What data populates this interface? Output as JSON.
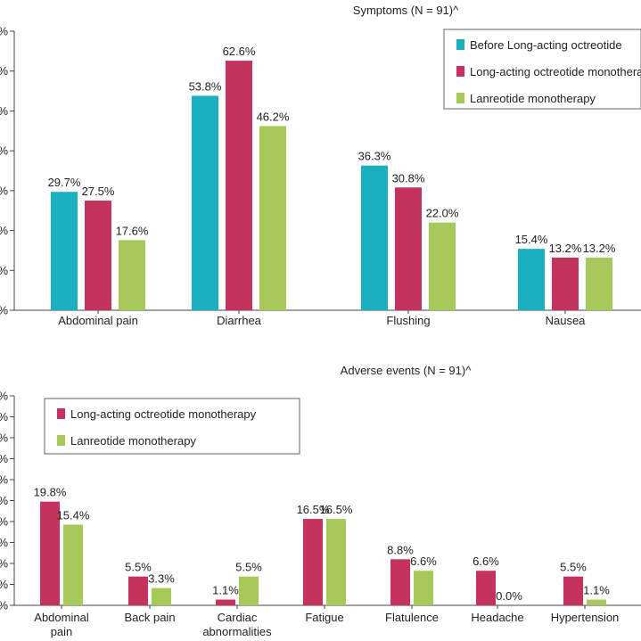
{
  "chart_data": [
    {
      "type": "bar",
      "title": "Symptoms (N = 91)^",
      "categories": [
        "Abdominal pain",
        "Diarrhea",
        "Flushing",
        "Nausea"
      ],
      "ytick_labels": [
        "%",
        "%",
        "%",
        "%",
        "%",
        "%",
        "%",
        "%"
      ],
      "ylim": [
        0,
        70
      ],
      "grid": false,
      "legend_position": "top-right",
      "series": [
        {
          "name": "Before Long-acting octreotide",
          "color": "#1ab0c0",
          "values": [
            29.7,
            53.8,
            36.3,
            15.4
          ],
          "labels": [
            "29.7%",
            "53.8%",
            "36.3%",
            "15.4%"
          ]
        },
        {
          "name": "Long-acting octreotide monotherapy",
          "color": "#c4325e",
          "values": [
            27.5,
            62.6,
            30.8,
            13.2
          ],
          "labels": [
            "27.5%",
            "62.6%",
            "30.8%",
            "13.2%"
          ]
        },
        {
          "name": "Lanreotide monotherapy",
          "color": "#a7c95a",
          "values": [
            17.6,
            46.2,
            22.0,
            13.2
          ],
          "labels": [
            "17.6%",
            "46.2%",
            "22.0%",
            "13.2%"
          ]
        }
      ]
    },
    {
      "type": "bar",
      "title": "Adverse events (N = 91)^",
      "categories": [
        "Abdominal pain",
        "Back pain",
        "Cardiac abnormalities",
        "Fatigue",
        "Flatulence",
        "Headache",
        "Hypertension"
      ],
      "ytick_labels": [
        "%",
        "%",
        "%",
        "%",
        "%",
        "%",
        "%",
        "%",
        "%",
        "%",
        "%"
      ],
      "ylim": [
        0,
        40
      ],
      "grid": false,
      "legend_position": "top-left",
      "series": [
        {
          "name": "Long-acting octreotide monotherapy",
          "color": "#c4325e",
          "values": [
            19.8,
            5.5,
            1.1,
            16.5,
            8.8,
            6.6,
            5.5
          ],
          "labels": [
            "19.8%",
            "5.5%",
            "1.1%",
            "16.5%",
            "8.8%",
            "6.6%",
            "5.5%"
          ]
        },
        {
          "name": "Lanreotide monotherapy",
          "color": "#a7c95a",
          "values": [
            15.4,
            3.3,
            5.5,
            16.5,
            6.6,
            0.0,
            1.1
          ],
          "labels": [
            "15.4%",
            "3.3%",
            "5.5%",
            "16.5%",
            "6.6%",
            "0.0%",
            "1.1%"
          ]
        }
      ]
    }
  ]
}
